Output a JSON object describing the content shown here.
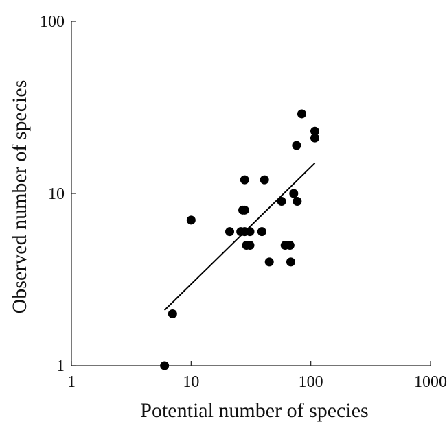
{
  "chart_data": {
    "type": "scatter",
    "xlabel": "Potential number of species",
    "ylabel": "Observed number of species",
    "x_scale": "log",
    "y_scale": "log",
    "xlim": [
      1,
      1000
    ],
    "ylim": [
      1,
      100
    ],
    "x_ticks": [
      {
        "value": 1,
        "label": "1"
      },
      {
        "value": 10,
        "label": "10"
      },
      {
        "value": 100,
        "label": "100"
      },
      {
        "value": 1000,
        "label": "1000"
      }
    ],
    "y_ticks": [
      {
        "value": 1,
        "label": "1"
      },
      {
        "value": 10,
        "label": "10"
      },
      {
        "value": 100,
        "label": "100"
      }
    ],
    "grid": false,
    "points": [
      {
        "x": 6,
        "y": 1
      },
      {
        "x": 7,
        "y": 2
      },
      {
        "x": 10,
        "y": 7
      },
      {
        "x": 21,
        "y": 6
      },
      {
        "x": 26,
        "y": 6
      },
      {
        "x": 27,
        "y": 8
      },
      {
        "x": 28,
        "y": 8
      },
      {
        "x": 28,
        "y": 12
      },
      {
        "x": 28,
        "y": 6
      },
      {
        "x": 29,
        "y": 5
      },
      {
        "x": 31,
        "y": 6
      },
      {
        "x": 31,
        "y": 5
      },
      {
        "x": 39,
        "y": 6
      },
      {
        "x": 41,
        "y": 12
      },
      {
        "x": 45,
        "y": 4
      },
      {
        "x": 57,
        "y": 9
      },
      {
        "x": 61,
        "y": 5
      },
      {
        "x": 67,
        "y": 5
      },
      {
        "x": 68,
        "y": 4
      },
      {
        "x": 72,
        "y": 10
      },
      {
        "x": 76,
        "y": 19
      },
      {
        "x": 77,
        "y": 9
      },
      {
        "x": 84,
        "y": 29
      },
      {
        "x": 108,
        "y": 21
      },
      {
        "x": 108,
        "y": 23
      }
    ],
    "fit_line": {
      "x": [
        6,
        108
      ],
      "y": [
        2.1,
        15
      ]
    }
  }
}
